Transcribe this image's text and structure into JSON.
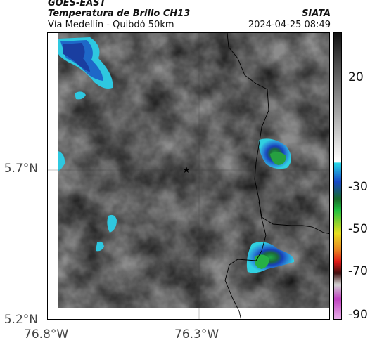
{
  "header": {
    "satellite": "GOES-EAST",
    "product": "Temperatura de Brillo CH13",
    "route": "Vía Medellín - Quibdó 50km",
    "agency": "SIATA",
    "timestamp": "2024-04-25 08:49"
  },
  "map": {
    "lat_ticks": [
      "5.7°N",
      "5.2°N"
    ],
    "lon_ticks": [
      "76.8°W",
      "76.3°W"
    ],
    "marker_icon": "star-icon"
  },
  "colorbar": {
    "ticks": [
      "20",
      "-30",
      "-50",
      "-70",
      "-90"
    ],
    "colors": {
      "gray_high": "#111111",
      "gray_low": "#ffffff",
      "cyan": "#28d8e8",
      "blue": "#1848c8",
      "green": "#20c040",
      "yellow": "#e8e020",
      "red": "#e01818",
      "magenta": "#c040c0"
    }
  }
}
